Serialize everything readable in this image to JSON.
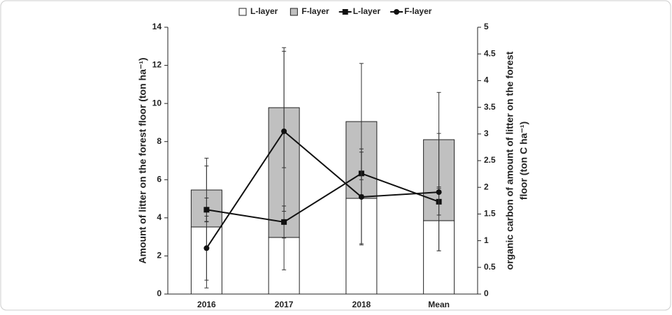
{
  "chart_data": {
    "type": "bar-line",
    "categories": [
      "2016",
      "2017",
      "2018",
      "Mean"
    ],
    "ylabel": "Amount of litter on the forest floor (ton ha⁻¹)",
    "y2label": [
      "organic carbon of amount of litter on the forest",
      "floor (ton C ha⁻¹)"
    ],
    "ylim": [
      0,
      14
    ],
    "yticks": [
      0,
      2,
      4,
      6,
      8,
      10,
      12,
      14
    ],
    "y2lim": [
      0,
      5
    ],
    "y2ticks": [
      0,
      0.5,
      1,
      1.5,
      2,
      2.5,
      3,
      3.5,
      4,
      4.5,
      5
    ],
    "series": [
      {
        "name": "L-layer",
        "kind": "bar",
        "color": "#ffffff",
        "values": [
          3.52,
          2.97,
          5.02,
          3.85
        ],
        "errors": [
          3.2,
          1.7,
          2.38,
          1.58
        ]
      },
      {
        "name": "F-layer",
        "kind": "bar",
        "color": "#c0c0c0",
        "values": [
          1.94,
          6.81,
          4.03,
          4.25
        ],
        "errors": [
          1.67,
          3.15,
          3.05,
          2.48
        ]
      },
      {
        "name": "L-layer",
        "kind": "line",
        "marker": "square",
        "axis": "y2",
        "color": "#111111",
        "values": [
          1.58,
          1.35,
          2.26,
          1.73
        ],
        "errors": [
          0.22,
          0.3,
          0.4,
          0.25
        ]
      },
      {
        "name": "F-layer",
        "kind": "line",
        "marker": "circle",
        "axis": "y2",
        "color": "#111111",
        "values": [
          0.86,
          3.05,
          1.82,
          1.91
        ],
        "errors": [
          0.6,
          1.5,
          0.9,
          1.1
        ]
      }
    ]
  }
}
